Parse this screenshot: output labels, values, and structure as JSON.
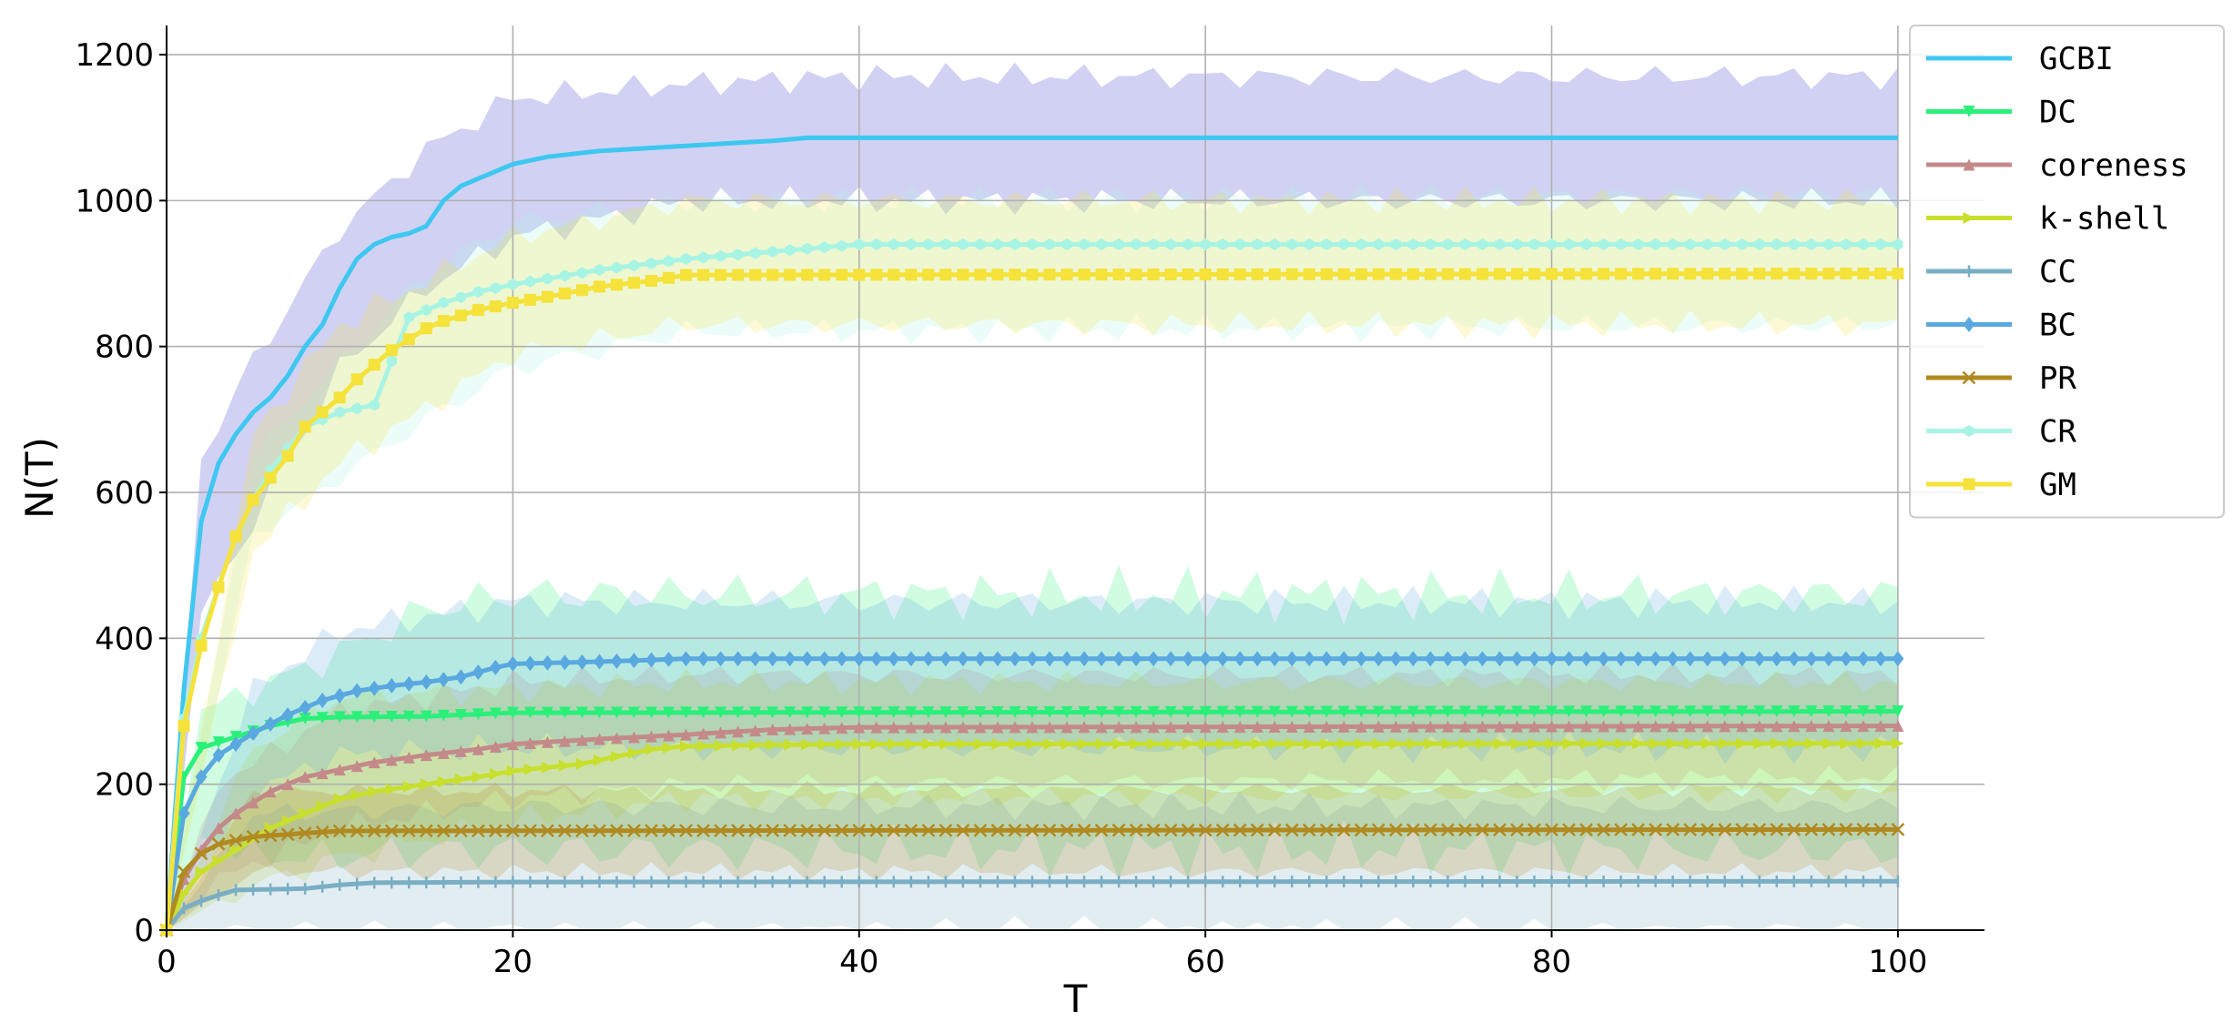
{
  "chart_data": {
    "type": "line",
    "title": "",
    "xlabel": "T",
    "ylabel": "N(T)",
    "xlim": [
      0,
      105
    ],
    "ylim": [
      0,
      1240
    ],
    "xticks": [
      0,
      20,
      40,
      60,
      80,
      100
    ],
    "yticks": [
      0,
      200,
      400,
      600,
      800,
      1000,
      1200
    ],
    "grid": true,
    "legend_position": "top-right",
    "series": [
      {
        "name": "GCBI",
        "color": "#3ec8f0",
        "marker": "none",
        "band_color": "#9a9ae6",
        "keypoints": [
          [
            0,
            0
          ],
          [
            1,
            330
          ],
          [
            2,
            560
          ],
          [
            3,
            640
          ],
          [
            4,
            680
          ],
          [
            5,
            710
          ],
          [
            6,
            730
          ],
          [
            7,
            760
          ],
          [
            8,
            800
          ],
          [
            9,
            830
          ],
          [
            10,
            880
          ],
          [
            11,
            920
          ],
          [
            12,
            940
          ],
          [
            13,
            950
          ],
          [
            14,
            955
          ],
          [
            15,
            965
          ],
          [
            16,
            1000
          ],
          [
            17,
            1020
          ],
          [
            18,
            1030
          ],
          [
            19,
            1040
          ],
          [
            20,
            1050
          ],
          [
            22,
            1060
          ],
          [
            25,
            1068
          ],
          [
            30,
            1075
          ],
          [
            35,
            1082
          ],
          [
            37,
            1086
          ],
          [
            40,
            1086
          ],
          [
            100,
            1086
          ]
        ],
        "band": [
          [
            0,
            0,
            0
          ],
          [
            2,
            430,
            650
          ],
          [
            5,
            560,
            780
          ],
          [
            10,
            770,
            960
          ],
          [
            15,
            880,
            1070
          ],
          [
            20,
            950,
            1140
          ],
          [
            30,
            1000,
            1160
          ],
          [
            40,
            1000,
            1170
          ],
          [
            100,
            1000,
            1170
          ]
        ]
      },
      {
        "name": "DC",
        "color": "#2af07a",
        "marker": "triangle-down",
        "keypoints": [
          [
            0,
            0
          ],
          [
            1,
            210
          ],
          [
            2,
            250
          ],
          [
            4,
            265
          ],
          [
            6,
            280
          ],
          [
            8,
            290
          ],
          [
            10,
            292
          ],
          [
            15,
            293
          ],
          [
            20,
            298
          ],
          [
            100,
            300
          ]
        ],
        "band": [
          [
            0,
            0,
            0
          ],
          [
            2,
            130,
            300
          ],
          [
            5,
            100,
            330
          ],
          [
            10,
            100,
            380
          ],
          [
            15,
            110,
            440
          ],
          [
            20,
            110,
            460
          ],
          [
            30,
            110,
            460
          ],
          [
            100,
            110,
            460
          ]
        ]
      },
      {
        "name": "coreness",
        "color": "#c48a8a",
        "marker": "triangle-up",
        "keypoints": [
          [
            0,
            0
          ],
          [
            1,
            70
          ],
          [
            2,
            110
          ],
          [
            3,
            140
          ],
          [
            4,
            160
          ],
          [
            5,
            175
          ],
          [
            6,
            190
          ],
          [
            7,
            200
          ],
          [
            8,
            210
          ],
          [
            10,
            220
          ],
          [
            12,
            230
          ],
          [
            15,
            240
          ],
          [
            18,
            248
          ],
          [
            20,
            255
          ],
          [
            25,
            262
          ],
          [
            30,
            268
          ],
          [
            35,
            275
          ],
          [
            40,
            278
          ],
          [
            100,
            280
          ]
        ],
        "band": [
          [
            0,
            0,
            0
          ],
          [
            3,
            70,
            200
          ],
          [
            10,
            140,
            300
          ],
          [
            20,
            180,
            340
          ],
          [
            30,
            200,
            350
          ],
          [
            100,
            210,
            350
          ]
        ]
      },
      {
        "name": "k-shell",
        "color": "#c8df2e",
        "marker": "triangle-right",
        "keypoints": [
          [
            0,
            0
          ],
          [
            1,
            50
          ],
          [
            2,
            80
          ],
          [
            4,
            110
          ],
          [
            6,
            140
          ],
          [
            8,
            160
          ],
          [
            10,
            180
          ],
          [
            12,
            190
          ],
          [
            15,
            200
          ],
          [
            18,
            210
          ],
          [
            20,
            218
          ],
          [
            24,
            228
          ],
          [
            26,
            238
          ],
          [
            28,
            248
          ],
          [
            30,
            252
          ],
          [
            35,
            254
          ],
          [
            40,
            255
          ],
          [
            100,
            256
          ]
        ],
        "band": [
          [
            0,
            0,
            0
          ],
          [
            5,
            60,
            250
          ],
          [
            10,
            100,
            320
          ],
          [
            20,
            150,
            330
          ],
          [
            30,
            180,
            340
          ],
          [
            100,
            190,
            340
          ]
        ]
      },
      {
        "name": "CC",
        "color": "#7aaec4",
        "marker": "plus",
        "keypoints": [
          [
            0,
            0
          ],
          [
            1,
            30
          ],
          [
            2,
            40
          ],
          [
            3,
            48
          ],
          [
            4,
            55
          ],
          [
            6,
            56
          ],
          [
            8,
            57
          ],
          [
            10,
            62
          ],
          [
            12,
            65
          ],
          [
            20,
            66
          ],
          [
            100,
            67
          ]
        ],
        "band": [
          [
            0,
            0,
            0
          ],
          [
            5,
            0,
            160
          ],
          [
            20,
            0,
            170
          ],
          [
            100,
            0,
            170
          ]
        ]
      },
      {
        "name": "BC",
        "color": "#5aa8e0",
        "marker": "diamond",
        "keypoints": [
          [
            0,
            0
          ],
          [
            1,
            160
          ],
          [
            2,
            210
          ],
          [
            3,
            240
          ],
          [
            5,
            270
          ],
          [
            7,
            295
          ],
          [
            9,
            315
          ],
          [
            11,
            328
          ],
          [
            13,
            335
          ],
          [
            15,
            340
          ],
          [
            17,
            347
          ],
          [
            19,
            360
          ],
          [
            20,
            365
          ],
          [
            25,
            368
          ],
          [
            30,
            372
          ],
          [
            100,
            372
          ]
        ],
        "band": [
          [
            0,
            0,
            0
          ],
          [
            5,
            190,
            330
          ],
          [
            10,
            240,
            410
          ],
          [
            20,
            250,
            450
          ],
          [
            30,
            250,
            450
          ],
          [
            100,
            250,
            450
          ]
        ]
      },
      {
        "name": "PR",
        "color": "#b08a20",
        "marker": "x",
        "keypoints": [
          [
            0,
            0
          ],
          [
            1,
            80
          ],
          [
            2,
            105
          ],
          [
            3,
            118
          ],
          [
            5,
            128
          ],
          [
            8,
            133
          ],
          [
            10,
            136
          ],
          [
            100,
            138
          ]
        ],
        "band": [
          [
            0,
            0,
            0
          ],
          [
            5,
            80,
            190
          ],
          [
            100,
            80,
            195
          ]
        ]
      },
      {
        "name": "CR",
        "color": "#a8f4e4",
        "marker": "hexagon",
        "keypoints": [
          [
            0,
            0
          ],
          [
            1,
            290
          ],
          [
            2,
            400
          ],
          [
            3,
            470
          ],
          [
            4,
            540
          ],
          [
            5,
            590
          ],
          [
            6,
            630
          ],
          [
            7,
            660
          ],
          [
            8,
            690
          ],
          [
            10,
            710
          ],
          [
            12,
            720
          ],
          [
            14,
            840
          ],
          [
            16,
            860
          ],
          [
            18,
            875
          ],
          [
            20,
            885
          ],
          [
            25,
            905
          ],
          [
            30,
            920
          ],
          [
            35,
            930
          ],
          [
            40,
            940
          ],
          [
            100,
            940
          ]
        ],
        "band": [
          [
            0,
            0,
            0
          ],
          [
            5,
            540,
            650
          ],
          [
            10,
            620,
            780
          ],
          [
            15,
            700,
            900
          ],
          [
            20,
            770,
            970
          ],
          [
            30,
            820,
            1000
          ],
          [
            100,
            830,
            1010
          ]
        ]
      },
      {
        "name": "GM",
        "color": "#f5e23a",
        "marker": "square",
        "keypoints": [
          [
            0,
            0
          ],
          [
            1,
            280
          ],
          [
            2,
            390
          ],
          [
            3,
            470
          ],
          [
            4,
            540
          ],
          [
            5,
            590
          ],
          [
            6,
            620
          ],
          [
            7,
            650
          ],
          [
            8,
            690
          ],
          [
            9,
            710
          ],
          [
            10,
            730
          ],
          [
            11,
            755
          ],
          [
            12,
            775
          ],
          [
            13,
            795
          ],
          [
            14,
            810
          ],
          [
            15,
            825
          ],
          [
            16,
            835
          ],
          [
            18,
            850
          ],
          [
            20,
            860
          ],
          [
            22,
            868
          ],
          [
            25,
            882
          ],
          [
            28,
            890
          ],
          [
            30,
            898
          ],
          [
            100,
            900
          ]
        ],
        "band": [
          [
            0,
            0,
            0
          ],
          [
            5,
            520,
            680
          ],
          [
            10,
            640,
            830
          ],
          [
            20,
            790,
            950
          ],
          [
            30,
            830,
            1000
          ],
          [
            100,
            830,
            1000
          ]
        ]
      }
    ]
  }
}
